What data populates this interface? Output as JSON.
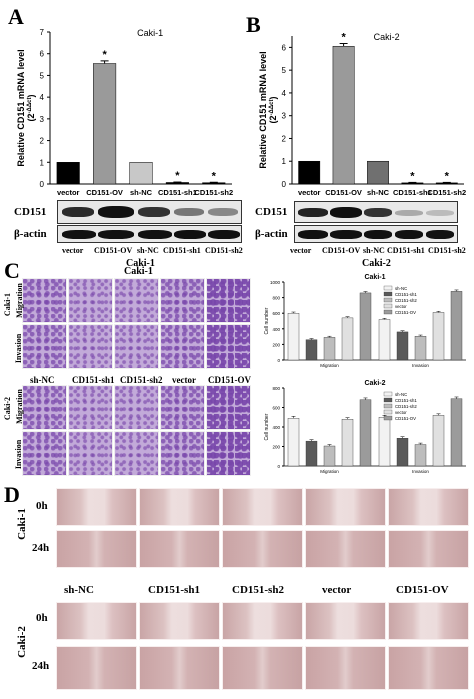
{
  "panels": {
    "a": "A",
    "b": "B",
    "c": "C",
    "d": "D"
  },
  "chart_data": [
    {
      "type": "bar",
      "title": "Caki-1",
      "categories": [
        "vector",
        "CD151-OV",
        "sh-NC",
        "CD151-sh1",
        "CD151-sh2"
      ],
      "values": [
        1.0,
        5.55,
        1.0,
        0.07,
        0.06
      ],
      "errors": [
        0,
        0.12,
        0,
        0.02,
        0.02
      ],
      "significant": [
        false,
        true,
        false,
        true,
        true
      ],
      "colors": [
        "#000000",
        "#9a9a9a",
        "#c8c8c8",
        "#000000",
        "#000000"
      ],
      "ylabel_line1": "Relative CD151 mRNA level",
      "ylabel_line2": "(2",
      "ylabel_sup": "-ΔΔct",
      "ylabel_close": ")",
      "yticks": [
        "0",
        "1",
        "2",
        "3",
        "4",
        "5",
        "6",
        "7"
      ],
      "ylim": [
        0,
        7
      ]
    },
    {
      "type": "bar",
      "title": "Caki-2",
      "categories": [
        "vector",
        "CD151-OV",
        "sh-NC",
        "CD151-sh1",
        "CD151-sh2"
      ],
      "values": [
        1.0,
        6.05,
        1.0,
        0.05,
        0.05
      ],
      "errors": [
        0,
        0.12,
        0,
        0.02,
        0.02
      ],
      "significant": [
        false,
        true,
        false,
        true,
        true
      ],
      "colors": [
        "#000000",
        "#9a9a9a",
        "#707070",
        "#000000",
        "#000000"
      ],
      "ylabel_line1": "Relative CD151 mRNA level",
      "ylabel_line2": "(2",
      "ylabel_sup": "-ΔΔct",
      "ylabel_close": ")",
      "yticks": [
        "0",
        "1",
        "2",
        "3",
        "4",
        "5",
        "6"
      ],
      "ylim": [
        0,
        6.5
      ]
    },
    {
      "type": "bar",
      "title": "Caki-1",
      "categories": [
        "Migration",
        "Invasion"
      ],
      "legend": [
        "sh-NC",
        "CD151-sh1",
        "CD151-sh2",
        "vector",
        "CD151-OV"
      ],
      "series": [
        {
          "name": "sh-NC",
          "values": [
            600,
            520
          ],
          "errors": [
            15,
            15
          ]
        },
        {
          "name": "CD151-sh1",
          "values": [
            260,
            360
          ],
          "errors": [
            15,
            15
          ]
        },
        {
          "name": "CD151-sh2",
          "values": [
            290,
            305
          ],
          "errors": [
            15,
            15
          ]
        },
        {
          "name": "vector",
          "values": [
            540,
            610
          ],
          "errors": [
            15,
            15
          ]
        },
        {
          "name": "CD151-OV",
          "values": [
            860,
            880
          ],
          "errors": [
            18,
            18
          ]
        }
      ],
      "ylabel": "Cell number",
      "yticks": [
        "0",
        "200",
        "400",
        "600",
        "800",
        "1000"
      ],
      "ylim": [
        0,
        1000
      ]
    },
    {
      "type": "bar",
      "title": "Caki-2",
      "categories": [
        "Migration",
        "Invasion"
      ],
      "legend": [
        "sh-NC",
        "CD151-sh1",
        "CD151-sh2",
        "vector",
        "CD151-OV"
      ],
      "series": [
        {
          "name": "sh-NC",
          "values": [
            490,
            500
          ],
          "errors": [
            20,
            20
          ]
        },
        {
          "name": "CD151-sh1",
          "values": [
            255,
            285
          ],
          "errors": [
            15,
            15
          ]
        },
        {
          "name": "CD151-sh2",
          "values": [
            205,
            220
          ],
          "errors": [
            15,
            15
          ]
        },
        {
          "name": "vector",
          "values": [
            480,
            520
          ],
          "errors": [
            15,
            15
          ]
        },
        {
          "name": "CD151-OV",
          "values": [
            680,
            690
          ],
          "errors": [
            18,
            18
          ]
        }
      ],
      "ylabel": "Cell number",
      "yticks": [
        "0",
        "200",
        "400",
        "600",
        "800"
      ],
      "ylim": [
        0,
        800
      ]
    }
  ],
  "blots": {
    "caki1": {
      "protein": "CD151",
      "control": "β-actin",
      "lanes": [
        "vector",
        "CD151-OV",
        "sh-NC",
        "CD151-sh1",
        "CD151-sh2"
      ],
      "cell_line": "Caki-1"
    },
    "caki2": {
      "protein": "CD151",
      "control": "β-actin",
      "lanes": [
        "vector",
        "CD151-OV",
        "sh-NC",
        "CD151-sh1",
        "CD151-sh2"
      ],
      "cell_line": "Caki-2"
    }
  },
  "transwell": {
    "title": "Caki-1",
    "rows_top": {
      "group": "Caki-1",
      "migration": "Migration",
      "invasion": "Invasion"
    },
    "rows_bottom": {
      "group": "Caki-2",
      "migration": "Migration",
      "invasion": "Invasion"
    },
    "columns": [
      "sh-NC",
      "CD151-sh1",
      "CD151-sh2",
      "vector",
      "CD151-OV"
    ]
  },
  "wound": {
    "top": {
      "group": "Caki-1",
      "t0": "0h",
      "t24": "24h"
    },
    "bottom": {
      "group": "Caki-2",
      "t0": "0h",
      "t24": "24h"
    },
    "columns": [
      "sh-NC",
      "CD151-sh1",
      "CD151-sh2",
      "vector",
      "CD151-OV"
    ]
  },
  "colors": {
    "purple": "#8e5ab3",
    "pink": "#d7b9ba",
    "series": [
      "#f2f2f2",
      "#5a5a5a",
      "#bdbdbd",
      "#e0e0e0",
      "#9b9b9b"
    ]
  }
}
